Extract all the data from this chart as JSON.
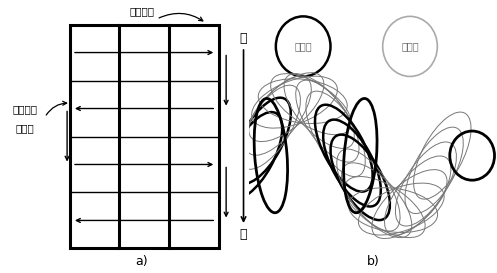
{
  "fig_width": 4.97,
  "fig_height": 2.73,
  "dpi": 100,
  "bg_color": "#ffffff",
  "label_a": "a)",
  "label_b": "b)",
  "text_gaolou": "高楼外壁",
  "text_jiqiren1": "机器人清",
  "text_jiqiren2": "洁路径",
  "text_shang": "上",
  "text_xia": "下",
  "text_gudingduan": "固定端",
  "text_huodongduan": "活动端"
}
